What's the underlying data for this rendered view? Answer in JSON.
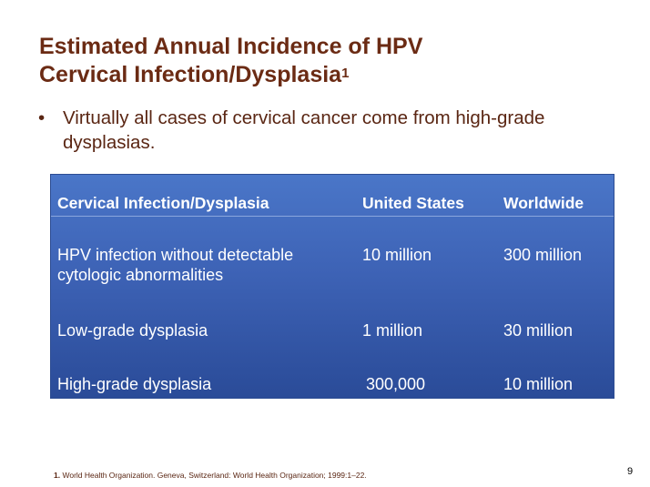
{
  "slide": {
    "title_line1": "Estimated Annual Incidence of HPV",
    "title_line2": "Cervical Infection/Dysplasia",
    "title_superscript": "1",
    "bullet_symbol": "•",
    "bullet_text": "Virtually all cases of cervical cancer come from high-grade dysplasias.",
    "page_number": "9"
  },
  "table": {
    "headers": [
      "Cervical Infection/Dysplasia",
      "United States",
      "Worldwide"
    ],
    "rows": [
      [
        "HPV infection without detectable cytologic abnormalities",
        "10 million",
        "300 million"
      ],
      [
        "Low-grade dysplasia",
        "1 million",
        "30 million"
      ],
      [
        "High-grade dysplasia",
        "300,000",
        "10 million"
      ]
    ]
  },
  "footnote": {
    "number": "1.",
    "text": "World Health Organization.  Geneva,  Switzerland: World Health Organization; 1999:1–22."
  }
}
